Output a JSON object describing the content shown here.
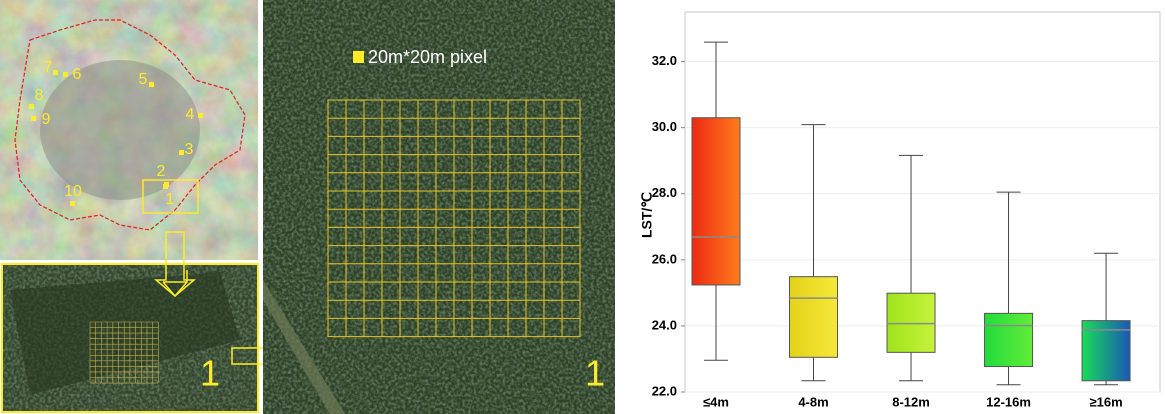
{
  "map": {
    "site_labels": [
      "1",
      "2",
      "3",
      "4",
      "5",
      "6",
      "7",
      "8",
      "9",
      "10"
    ],
    "zoom_label": "1",
    "pixel_legend": "20m*20m pixel",
    "panel_label": "1"
  },
  "chart_data": {
    "type": "box",
    "ylabel": "LST/℃",
    "categories": [
      "≤4m",
      "4-8m",
      "8-12m",
      "12-16m",
      "≥16m"
    ],
    "boxes": [
      {
        "min": 22.96,
        "q1": 25.24,
        "median": 26.69,
        "q3": 30.3,
        "max": 32.59
      },
      {
        "min": 22.34,
        "q1": 23.05,
        "median": 24.84,
        "q3": 25.49,
        "max": 30.09
      },
      {
        "min": 22.34,
        "q1": 23.2,
        "median": 24.07,
        "q3": 24.99,
        "max": 29.16
      },
      {
        "min": 22.22,
        "q1": 22.77,
        "median": 24.01,
        "q3": 24.38,
        "max": 28.05
      },
      {
        "min": 22.22,
        "q1": 22.34,
        "median": 23.88,
        "q3": 24.16,
        "max": 26.2
      }
    ],
    "colors": [
      [
        "#ec2a12",
        "#ff7c1c"
      ],
      [
        "#e4d21a",
        "#f4e838"
      ],
      [
        "#9fe41a",
        "#c6f23c"
      ],
      [
        "#22dc3c",
        "#62ec3a"
      ],
      [
        "#18dc5a",
        "#1a58b4"
      ]
    ],
    "ylim": [
      22,
      33.5
    ],
    "yticks": [
      {
        "value": 22,
        "label": "22.0"
      },
      {
        "value": 24,
        "label": "24.0"
      },
      {
        "value": 26,
        "label": "26.0"
      },
      {
        "value": 28,
        "label": "28.0"
      },
      {
        "value": 30,
        "label": "30.0"
      },
      {
        "value": 32,
        "label": "32.0"
      }
    ],
    "grid": true
  }
}
